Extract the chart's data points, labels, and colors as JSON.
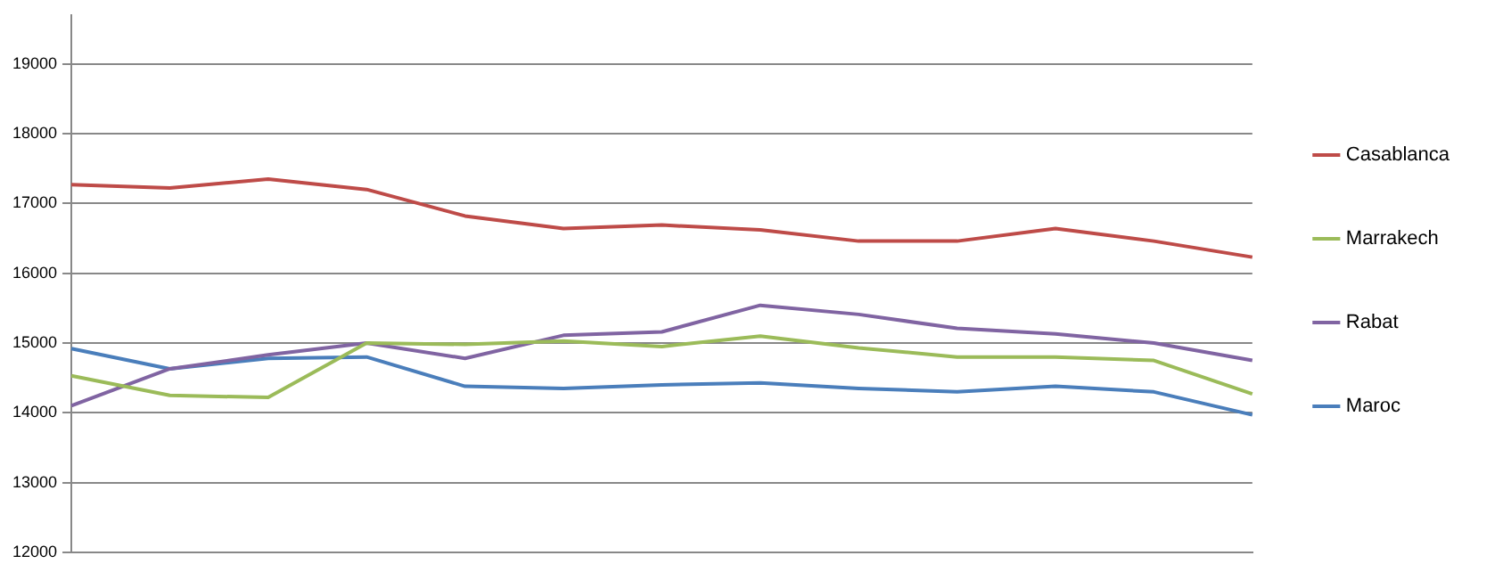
{
  "chart_data": {
    "type": "line",
    "categories": [
      null,
      null,
      null,
      null,
      null,
      null,
      null,
      null,
      null,
      null,
      null,
      null,
      null
    ],
    "series": [
      {
        "name": "Casablanca",
        "color": "#be4b48",
        "values": [
          17270,
          17220,
          17350,
          17200,
          16820,
          16640,
          16690,
          16620,
          16460,
          16460,
          16640,
          16460,
          16230
        ]
      },
      {
        "name": "Marrakech",
        "color": "#9bbb59",
        "values": [
          14530,
          14250,
          14220,
          15000,
          14980,
          15030,
          14950,
          15100,
          14930,
          14800,
          14800,
          14750,
          14270
        ]
      },
      {
        "name": "Rabat",
        "color": "#8064a2",
        "values": [
          14100,
          14630,
          14830,
          15000,
          14780,
          15110,
          15160,
          15540,
          15410,
          15210,
          15130,
          15000,
          14750
        ]
      },
      {
        "name": "Maroc",
        "color": "#4a7ebb",
        "values": [
          14920,
          14630,
          14780,
          14800,
          14380,
          14350,
          14400,
          14430,
          14350,
          14300,
          14380,
          14300,
          13970
        ]
      }
    ],
    "ylim": [
      12000,
      19700
    ],
    "yticks": [
      12000,
      13000,
      14000,
      15000,
      16000,
      17000,
      18000,
      19000
    ],
    "grid": "y",
    "legend": "right",
    "marker": "none",
    "line_style": "solid",
    "tick_labels": "y"
  }
}
